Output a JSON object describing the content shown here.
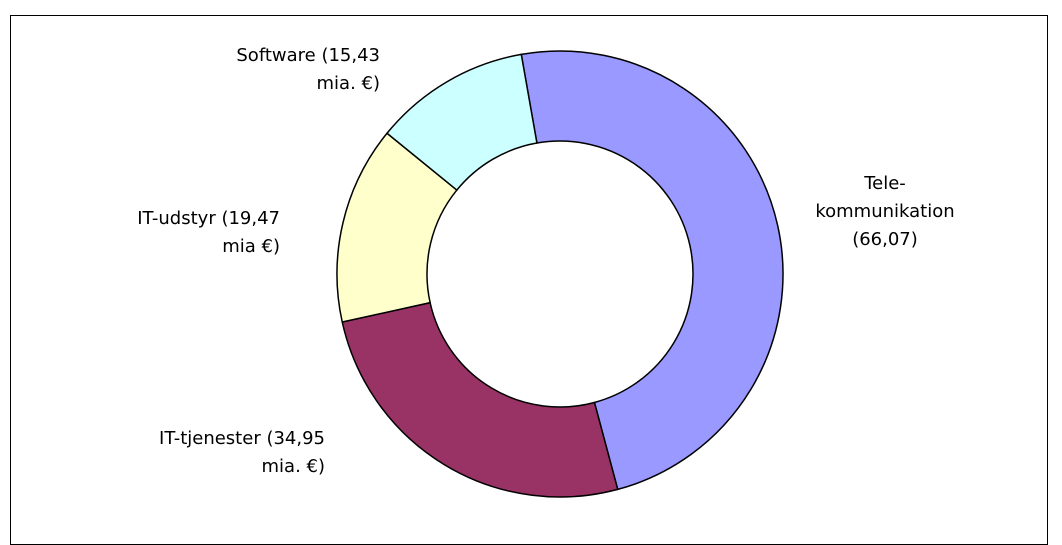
{
  "chart_data": {
    "type": "donut",
    "categories": [
      "Tele-\nkommunikation\n(66,07)",
      "IT-tjenester (34,95\nmia. €)",
      "IT-udstyr (19,47\nmia €)",
      "Software (15,43\nmia. €)"
    ],
    "values": [
      66.07,
      34.95,
      19.47,
      15.43
    ],
    "colors": [
      "#9999ff",
      "#993366",
      "#ffffcc",
      "#ccffff"
    ]
  }
}
